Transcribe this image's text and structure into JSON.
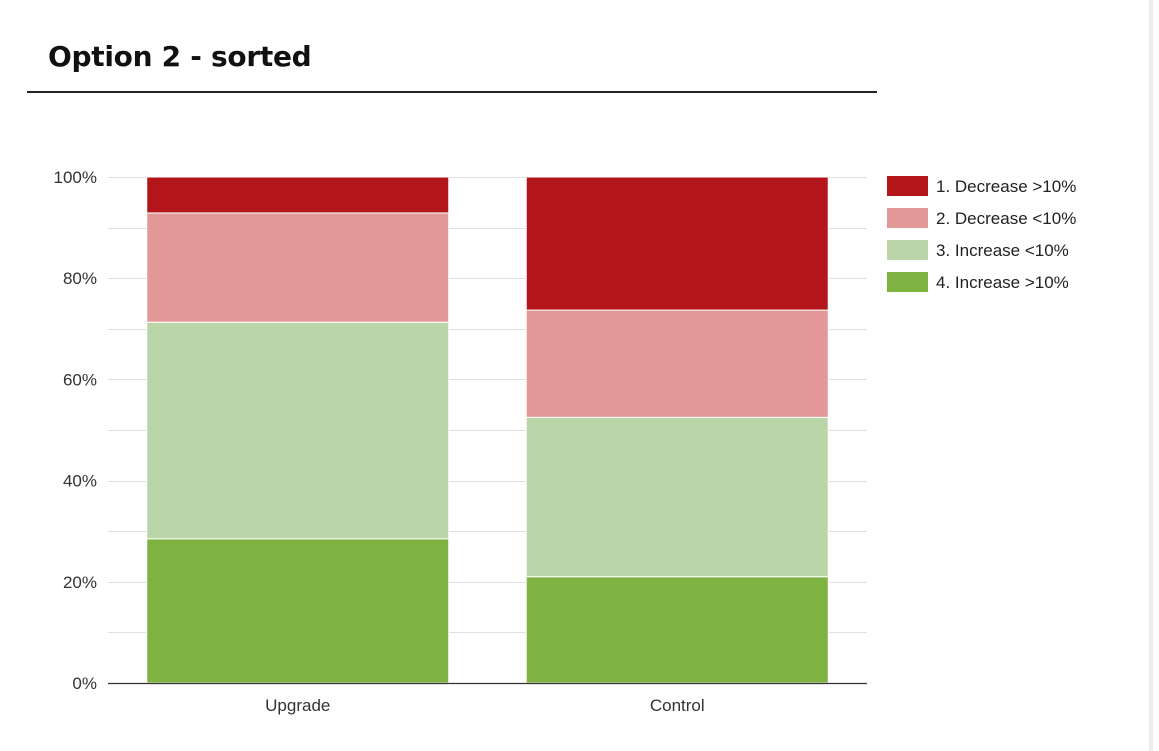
{
  "page": {
    "title": "Option 2 - sorted"
  },
  "colors": {
    "decrease_gt_10": "#b2161b",
    "decrease_lt_10": "#e29896",
    "increase_lt_10": "#bad6a8",
    "increase_gt_10": "#7eb342",
    "gridline": "#e0e0e0",
    "axis": "#333333"
  },
  "chart_data": {
    "type": "bar",
    "stacked": true,
    "title": "",
    "xlabel": "",
    "ylabel": "",
    "categories": [
      "Upgrade",
      "Control"
    ],
    "series": [
      {
        "name": "4. Increase >10%",
        "color": "#7eb342",
        "values": [
          28.5,
          21
        ]
      },
      {
        "name": "3. Increase <10%",
        "color": "#bad6a8",
        "values": [
          42.8,
          31.5
        ]
      },
      {
        "name": "2. Decrease <10%",
        "color": "#e29896",
        "values": [
          21.6,
          21.2
        ]
      },
      {
        "name": "1. Decrease >10%",
        "color": "#b2161b",
        "values": [
          7.1,
          26.3
        ]
      }
    ],
    "ylim": [
      0,
      100
    ],
    "yticks": [
      "0%",
      "20%",
      "40%",
      "60%",
      "80%",
      "100%"
    ],
    "grid": true,
    "legend_position": "right",
    "legend": [
      {
        "label": "1. Decrease >10%",
        "color": "#b2161b"
      },
      {
        "label": "2. Decrease <10%",
        "color": "#e29896"
      },
      {
        "label": "3. Increase <10%",
        "color": "#bad6a8"
      },
      {
        "label": "4. Increase >10%",
        "color": "#7eb342"
      }
    ]
  }
}
